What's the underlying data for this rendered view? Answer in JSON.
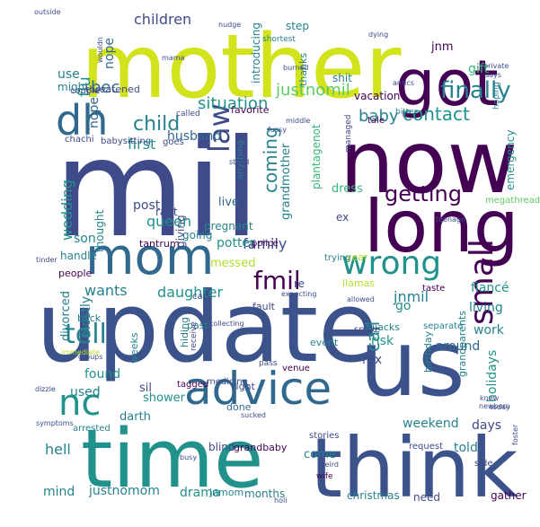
{
  "palette": {
    "background": "#ffffff",
    "c_deep_purple": "#440154",
    "c_indigo": "#3b528b",
    "c_blue": "#31688e",
    "c_steel": "#3e4a89",
    "c_teal": "#21918c",
    "c_teal_dark": "#26828e",
    "c_green": "#35b779",
    "c_lime": "#5ec962",
    "c_yellow_green": "#b5de2b",
    "c_yellow": "#d2e21b"
  },
  "words": [
    {
      "text": "mother",
      "color": "c_yellow"
    },
    {
      "text": "got",
      "color": "c_deep_purple"
    },
    {
      "text": "mil",
      "color": "c_steel"
    },
    {
      "text": "now",
      "color": "c_deep_purple"
    },
    {
      "text": "update",
      "color": "c_indigo"
    },
    {
      "text": "long",
      "color": "c_deep_purple"
    },
    {
      "text": "us",
      "color": "c_indigo"
    },
    {
      "text": "think",
      "color": "c_indigo"
    },
    {
      "text": "time",
      "color": "c_teal"
    },
    {
      "text": "advice",
      "color": "c_blue"
    },
    {
      "text": "mom",
      "color": "c_blue"
    },
    {
      "text": "dh",
      "color": "c_blue"
    },
    {
      "text": "wrong",
      "color": "c_teal"
    },
    {
      "text": "fmil",
      "color": "c_deep_purple"
    },
    {
      "text": "nc",
      "color": "c_teal"
    },
    {
      "text": "law",
      "color": "c_steel"
    },
    {
      "text": "finally",
      "color": "c_teal_dark"
    },
    {
      "text": "getting",
      "color": "c_deep_purple"
    },
    {
      "text": "small",
      "color": "c_deep_purple"
    },
    {
      "text": "tell",
      "color": "c_teal_dark"
    },
    {
      "text": "coming",
      "color": "c_teal_dark"
    },
    {
      "text": "child",
      "color": "c_teal_dark"
    },
    {
      "text": "situation",
      "color": "c_teal"
    },
    {
      "text": "contact",
      "color": "c_teal"
    },
    {
      "text": "call",
      "color": "c_teal_dark"
    },
    {
      "text": "justnomil",
      "color": "c_lime"
    },
    {
      "text": "bec",
      "color": "c_blue"
    },
    {
      "text": "children",
      "color": "c_steel"
    },
    {
      "text": "flu",
      "color": "c_teal"
    },
    {
      "text": "nope",
      "color": "c_blue"
    },
    {
      "text": "nope",
      "color": "c_blue"
    },
    {
      "text": "use",
      "color": "c_teal_dark"
    },
    {
      "text": "might",
      "color": "c_teal_dark"
    },
    {
      "text": "gift",
      "color": "c_green"
    },
    {
      "text": "jnm",
      "color": "c_deep_purple"
    },
    {
      "text": "first",
      "color": "c_teal"
    },
    {
      "text": "baby",
      "color": "c_teal_dark"
    },
    {
      "text": "family",
      "color": "c_steel"
    },
    {
      "text": "wants",
      "color": "c_teal_dark"
    },
    {
      "text": "daughter",
      "color": "c_teal"
    },
    {
      "text": "jnmil",
      "color": "c_teal_dark"
    },
    {
      "text": "wedding",
      "color": "c_teal"
    },
    {
      "text": "husband",
      "color": "c_blue"
    },
    {
      "text": "dress",
      "color": "c_green"
    },
    {
      "text": "queen",
      "color": "c_teal"
    },
    {
      "text": "going",
      "color": "c_teal_dark"
    },
    {
      "text": "post",
      "color": "c_steel"
    },
    {
      "text": "rant",
      "color": "c_steel"
    },
    {
      "text": "pregnant",
      "color": "c_teal_dark"
    },
    {
      "text": "live",
      "color": "c_blue"
    },
    {
      "text": "grandmother",
      "color": "c_teal_dark"
    },
    {
      "text": "plantagenot",
      "color": "c_green"
    },
    {
      "text": "emergency",
      "color": "c_teal"
    },
    {
      "text": "son",
      "color": "c_teal_dark"
    },
    {
      "text": "handle",
      "color": "c_teal_dark"
    },
    {
      "text": "people",
      "color": "c_deep_purple"
    },
    {
      "text": "potter",
      "color": "c_teal"
    },
    {
      "text": "messed",
      "color": "c_yellow_green"
    },
    {
      "text": "living",
      "color": "c_teal_dark"
    },
    {
      "text": "fiancé",
      "color": "c_teal"
    },
    {
      "text": "work",
      "color": "c_teal_dark"
    },
    {
      "text": "mostly",
      "color": "c_teal_dark"
    },
    {
      "text": "divorced",
      "color": "c_teal_dark"
    },
    {
      "text": "go",
      "color": "c_teal"
    },
    {
      "text": "risk",
      "color": "c_teal"
    },
    {
      "text": "around",
      "color": "c_blue"
    },
    {
      "text": "rex",
      "color": "c_steel"
    },
    {
      "text": "found",
      "color": "c_teal"
    },
    {
      "text": "used",
      "color": "c_teal_dark"
    },
    {
      "text": "hell",
      "color": "c_teal_dark"
    },
    {
      "text": "shower",
      "color": "c_teal"
    },
    {
      "text": "sil",
      "color": "c_steel"
    },
    {
      "text": "darth",
      "color": "c_teal_dark"
    },
    {
      "text": "right",
      "color": "c_steel"
    },
    {
      "text": "done",
      "color": "c_blue"
    },
    {
      "text": "blind",
      "color": "c_steel"
    },
    {
      "text": "grandbaby",
      "color": "c_deep_purple"
    },
    {
      "text": "come",
      "color": "c_teal_dark"
    },
    {
      "text": "holidays",
      "color": "c_teal"
    },
    {
      "text": "days",
      "color": "c_steel"
    },
    {
      "text": "told",
      "color": "c_teal_dark"
    },
    {
      "text": "weekend",
      "color": "c_teal_dark"
    },
    {
      "text": "mind",
      "color": "c_teal_dark"
    },
    {
      "text": "justnomom",
      "color": "c_teal_dark"
    },
    {
      "text": "drama",
      "color": "c_teal"
    },
    {
      "text": "jnmom",
      "color": "c_teal_dark"
    },
    {
      "text": "months",
      "color": "c_teal_dark"
    },
    {
      "text": "christmas",
      "color": "c_teal_dark"
    },
    {
      "text": "need",
      "color": "c_steel"
    },
    {
      "text": "gather",
      "color": "c_deep_purple"
    },
    {
      "text": "vacation",
      "color": "c_deep_purple"
    },
    {
      "text": "introducing",
      "color": "c_teal_dark"
    },
    {
      "text": "step",
      "color": "c_teal_dark"
    },
    {
      "text": "shit",
      "color": "c_teal_dark"
    },
    {
      "text": "thanks",
      "color": "c_teal_dark"
    },
    {
      "text": "threatened",
      "color": "c_steel"
    },
    {
      "text": "tale",
      "color": "c_deep_purple"
    },
    {
      "text": "ex",
      "color": "c_steel"
    },
    {
      "text": "thought",
      "color": "c_teal_dark"
    },
    {
      "text": "giving",
      "color": "c_steel"
    },
    {
      "text": "tantrum",
      "color": "c_deep_purple"
    },
    {
      "text": "police",
      "color": "c_deep_purple"
    },
    {
      "text": "babysitting",
      "color": "c_steel"
    },
    {
      "text": "chachi",
      "color": "c_steel"
    },
    {
      "text": "favorite",
      "color": "c_deep_purple"
    },
    {
      "text": "goes",
      "color": "c_steel"
    },
    {
      "text": "fault",
      "color": "c_steel"
    },
    {
      "text": "car",
      "color": "c_steel"
    },
    {
      "text": "re",
      "color": "c_steel"
    },
    {
      "text": "llamas",
      "color": "c_yellow_green"
    },
    {
      "text": "year",
      "color": "c_yellow_green"
    },
    {
      "text": "weeks",
      "color": "c_teal_dark"
    },
    {
      "text": "hiding",
      "color": "c_teal_dark"
    },
    {
      "text": "tagged",
      "color": "c_deep_purple"
    },
    {
      "text": "medicine",
      "color": "c_steel"
    },
    {
      "text": "arrested",
      "color": "c_teal_dark"
    },
    {
      "text": "back",
      "color": "c_teal_dark"
    },
    {
      "text": "birthday",
      "color": "c_teal_dark"
    },
    {
      "text": "hijacks",
      "color": "c_teal_dark"
    },
    {
      "text": "snake",
      "color": "c_steel"
    },
    {
      "text": "separate",
      "color": "c_teal_dark"
    },
    {
      "text": "venue",
      "color": "c_deep_purple"
    },
    {
      "text": "stories",
      "color": "c_steel"
    },
    {
      "text": "request",
      "color": "c_steel"
    },
    {
      "text": "side",
      "color": "c_steel"
    },
    {
      "text": "wife",
      "color": "c_deep_purple"
    },
    {
      "text": "past",
      "color": "c_teal_dark"
    },
    {
      "text": "event",
      "color": "c_teal_dark"
    },
    {
      "text": "pass",
      "color": "c_steel"
    },
    {
      "text": "receive",
      "color": "c_steel"
    },
    {
      "text": "grandparents",
      "color": "c_teal_dark"
    },
    {
      "text": "taste",
      "color": "c_deep_purple"
    },
    {
      "text": "trying",
      "color": "c_teal_dark"
    },
    {
      "text": "couple",
      "color": "c_steel"
    },
    {
      "text": "megathread",
      "color": "c_lime"
    },
    {
      "text": "shortest",
      "color": "c_teal_dark"
    },
    {
      "text": "bitter",
      "color": "c_teal_dark"
    },
    {
      "text": "anything",
      "color": "c_teal_dark"
    },
    {
      "text": "hoping",
      "color": "c_teal_dark"
    },
    {
      "text": "managed",
      "color": "c_steel"
    },
    {
      "text": "called",
      "color": "c_steel"
    },
    {
      "text": "outside",
      "color": "c_steel"
    },
    {
      "text": "wouldn",
      "color": "c_steel"
    },
    {
      "text": "burned",
      "color": "c_steel"
    },
    {
      "text": "antics",
      "color": "c_steel"
    },
    {
      "text": "today",
      "color": "c_steel"
    },
    {
      "text": "busy",
      "color": "c_steel"
    },
    {
      "text": "private",
      "color": "c_steel"
    },
    {
      "text": "says",
      "color": "c_steel"
    },
    {
      "text": "knew",
      "color": "c_steel"
    },
    {
      "text": "newborn",
      "color": "c_steel"
    },
    {
      "text": "teenage",
      "color": "c_steel"
    },
    {
      "text": "foster",
      "color": "c_steel"
    },
    {
      "text": "dizzle",
      "color": "c_steel"
    },
    {
      "text": "tinder",
      "color": "c_steel"
    },
    {
      "text": "groups",
      "color": "c_steel"
    },
    {
      "text": "symptoms",
      "color": "c_steel"
    },
    {
      "text": "immediate",
      "color": "c_yellow_green"
    },
    {
      "text": "expecting",
      "color": "c_steel"
    },
    {
      "text": "allowed",
      "color": "c_steel"
    },
    {
      "text": "middle",
      "color": "c_steel"
    },
    {
      "text": "dying",
      "color": "c_steel"
    },
    {
      "text": "collecting",
      "color": "c_steel"
    },
    {
      "text": "mama",
      "color": "c_steel"
    },
    {
      "text": "nudge",
      "color": "c_steel"
    },
    {
      "text": "sucked",
      "color": "c_steel"
    },
    {
      "text": "stand",
      "color": "c_steel"
    },
    {
      "text": "weird",
      "color": "c_steel"
    },
    {
      "text": "holi",
      "color": "c_steel"
    },
    {
      "text": "fussy",
      "color": "c_steel"
    },
    {
      "text": "mail",
      "color": "c_steel"
    }
  ]
}
